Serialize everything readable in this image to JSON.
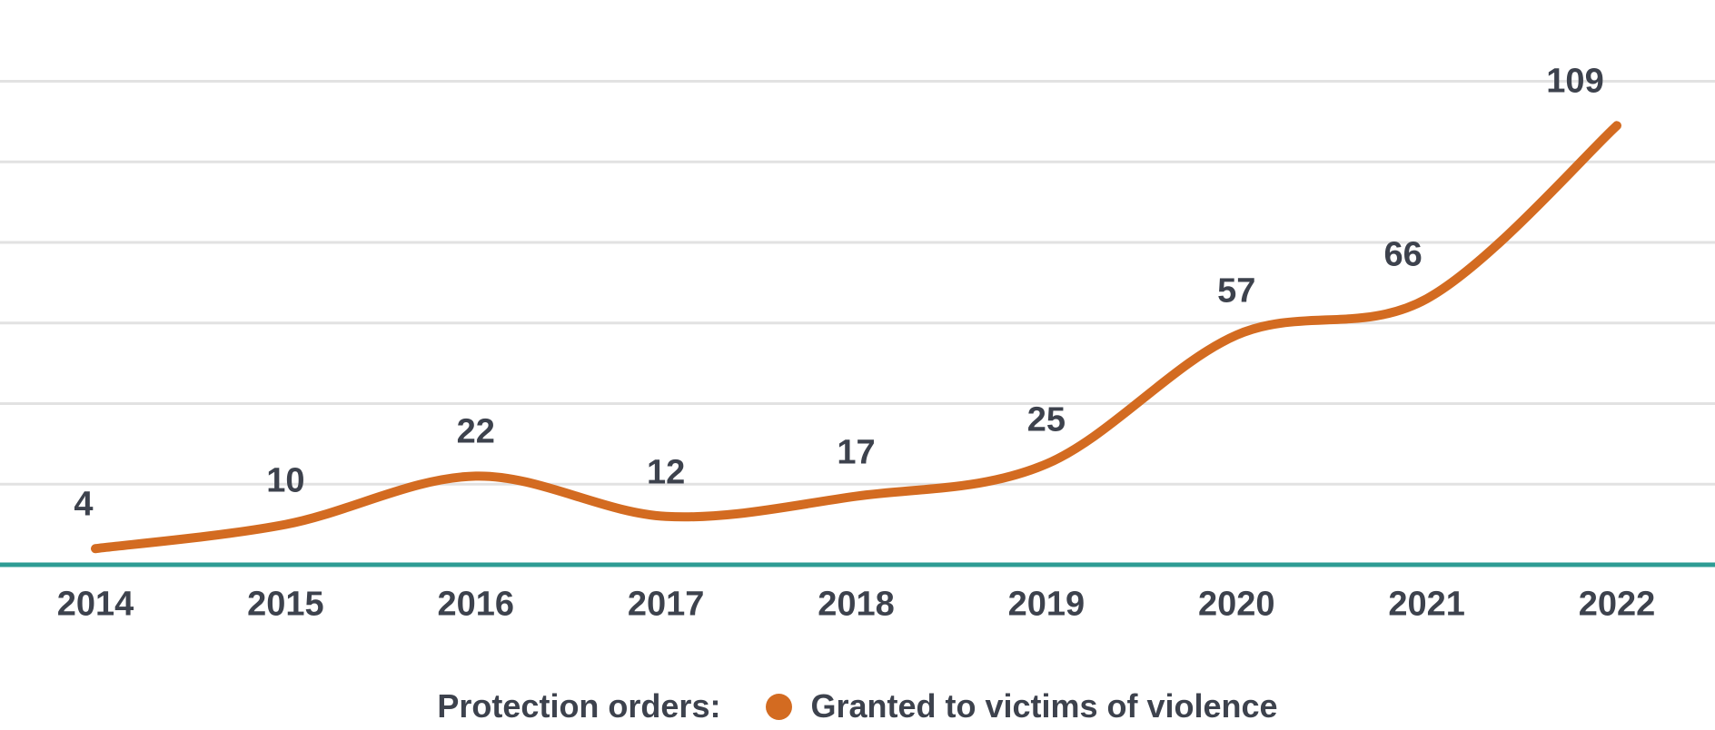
{
  "chart_data": {
    "type": "line",
    "categories": [
      "2014",
      "2015",
      "2016",
      "2017",
      "2018",
      "2019",
      "2020",
      "2021",
      "2022"
    ],
    "series": [
      {
        "name": "Granted to victims of violence",
        "values": [
          4,
          10,
          22,
          12,
          17,
          25,
          57,
          66,
          109
        ]
      }
    ],
    "title": "",
    "xlabel": "",
    "ylabel": "",
    "ylim": [
      0,
      120
    ],
    "gridline_values": [
      20,
      40,
      60,
      80,
      100,
      120
    ],
    "grid": "horizontal-only",
    "data_labels_shown": true,
    "legend_position": "bottom-center",
    "colors": {
      "series_line": "#d36b21",
      "axis_baseline": "#2e9c94",
      "gridline": "#e2e2e2",
      "label_text": "#3d424d"
    }
  },
  "legend": {
    "prefix": "Protection orders:",
    "item": "Granted to victims of violence"
  }
}
